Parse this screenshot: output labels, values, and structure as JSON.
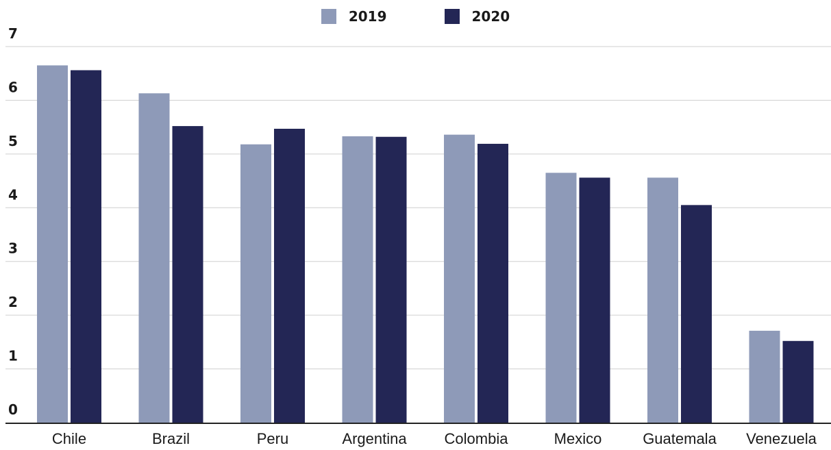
{
  "chart_data": {
    "type": "bar",
    "title": "",
    "xlabel": "",
    "ylabel": "",
    "categories": [
      "Chile",
      "Brazil",
      "Peru",
      "Argentina",
      "Colombia",
      "Mexico",
      "Guatemala",
      "Venezuela"
    ],
    "series": [
      {
        "name": "2019",
        "color": "#8e9ab8",
        "values": [
          6.65,
          6.13,
          5.18,
          5.33,
          5.36,
          4.65,
          4.56,
          1.71
        ]
      },
      {
        "name": "2020",
        "color": "#232655",
        "values": [
          6.56,
          5.52,
          5.47,
          5.32,
          5.19,
          4.56,
          4.05,
          1.52
        ]
      }
    ],
    "ylim": [
      0,
      7
    ],
    "yticks": [
      0,
      1,
      2,
      3,
      4,
      5,
      6,
      7
    ],
    "grid": true,
    "legend_position": "top-center"
  }
}
